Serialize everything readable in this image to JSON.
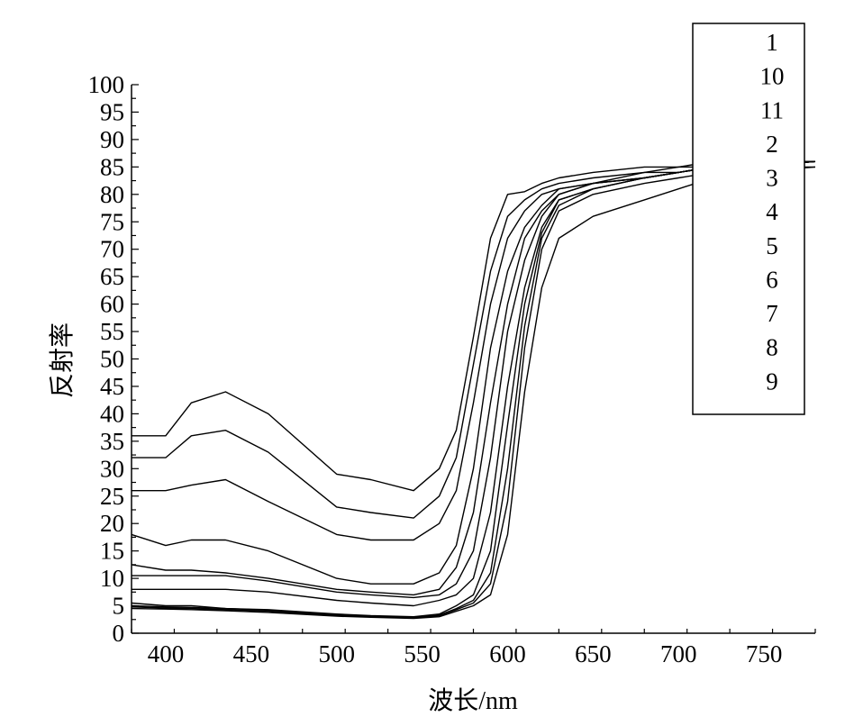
{
  "chart_data": {
    "type": "line",
    "xlabel": "波长/nm",
    "ylabel": "反射率",
    "xlim": [
      380,
      780
    ],
    "ylim": [
      0,
      100
    ],
    "x_ticks": [
      400,
      450,
      500,
      550,
      600,
      650,
      700,
      750
    ],
    "y_ticks": [
      0,
      5,
      10,
      15,
      20,
      25,
      30,
      35,
      40,
      45,
      50,
      55,
      60,
      65,
      70,
      75,
      80,
      85,
      90,
      95,
      100
    ],
    "grid": false,
    "legend": {
      "position": "top-right",
      "entries": [
        "1",
        "10",
        "11",
        "2",
        "3",
        "4",
        "5",
        "6",
        "7",
        "8",
        "9"
      ]
    },
    "line_color": "#000000",
    "series": [
      {
        "name": "1",
        "x": [
          380,
          400,
          415,
          435,
          460,
          500,
          520,
          545,
          560,
          570,
          580,
          590,
          600,
          610,
          620,
          630,
          650,
          680,
          700,
          720,
          740,
          780
        ],
        "y": [
          36,
          36,
          42,
          44,
          40,
          29,
          28,
          26,
          30,
          37,
          54,
          72,
          80,
          80.5,
          82,
          83,
          84,
          85,
          85,
          86,
          86,
          86
        ]
      },
      {
        "name": "10",
        "x": [
          380,
          400,
          415,
          435,
          460,
          500,
          520,
          545,
          560,
          570,
          580,
          590,
          600,
          610,
          620,
          630,
          650,
          680,
          700,
          720,
          740,
          780
        ],
        "y": [
          32,
          32,
          36,
          37,
          33,
          23,
          22,
          21,
          25,
          32,
          49,
          66,
          76,
          79,
          81,
          82,
          83,
          84,
          85,
          85,
          86,
          86
        ]
      },
      {
        "name": "11",
        "x": [
          380,
          400,
          415,
          435,
          460,
          500,
          520,
          545,
          560,
          570,
          580,
          590,
          600,
          610,
          620,
          630,
          650,
          680,
          700,
          720,
          740,
          780
        ],
        "y": [
          26,
          26,
          27,
          28,
          24,
          18,
          17,
          17,
          20,
          26,
          42,
          60,
          72,
          77,
          80,
          81,
          82,
          84,
          84,
          85,
          85,
          86
        ]
      },
      {
        "name": "2",
        "x": [
          380,
          400,
          415,
          435,
          460,
          500,
          520,
          545,
          560,
          570,
          580,
          590,
          600,
          610,
          620,
          630,
          650,
          680,
          700,
          720,
          740,
          780
        ],
        "y": [
          18,
          16,
          17,
          17,
          15,
          10,
          9,
          9,
          11,
          16,
          30,
          52,
          66,
          74,
          78,
          81,
          82,
          83,
          84,
          85,
          85,
          86
        ]
      },
      {
        "name": "3",
        "x": [
          380,
          400,
          415,
          435,
          460,
          500,
          520,
          545,
          560,
          570,
          580,
          590,
          600,
          610,
          620,
          630,
          650,
          680,
          700,
          720,
          740,
          780
        ],
        "y": [
          12.5,
          11.5,
          11.5,
          11,
          10,
          8,
          7.5,
          7,
          8,
          12,
          22,
          42,
          60,
          72,
          77,
          80,
          82,
          83,
          84,
          85,
          85,
          86
        ]
      },
      {
        "name": "4",
        "x": [
          380,
          400,
          415,
          435,
          460,
          500,
          520,
          545,
          560,
          570,
          580,
          590,
          600,
          610,
          620,
          630,
          650,
          680,
          700,
          720,
          740,
          780
        ],
        "y": [
          10.5,
          10.5,
          10.5,
          10.5,
          9.5,
          7.5,
          7,
          6.5,
          7,
          9,
          15,
          32,
          55,
          68,
          76,
          80,
          82,
          83,
          84,
          85,
          85,
          86
        ]
      },
      {
        "name": "5",
        "x": [
          380,
          400,
          415,
          435,
          460,
          500,
          520,
          545,
          560,
          570,
          580,
          590,
          600,
          610,
          620,
          630,
          650,
          680,
          700,
          720,
          740,
          780
        ],
        "y": [
          8,
          8,
          8,
          8,
          7.5,
          6,
          5.5,
          5,
          6,
          7,
          10,
          22,
          45,
          63,
          74,
          79,
          81,
          83,
          84,
          85,
          85,
          86
        ]
      },
      {
        "name": "6",
        "x": [
          380,
          400,
          415,
          435,
          460,
          500,
          520,
          545,
          560,
          570,
          580,
          590,
          600,
          610,
          620,
          630,
          650,
          680,
          700,
          720,
          740,
          780
        ],
        "y": [
          5.5,
          5,
          5,
          4.5,
          4.3,
          3.5,
          3.2,
          3,
          3.5,
          5,
          7,
          15,
          38,
          60,
          73,
          79,
          81,
          83,
          84,
          85,
          85,
          86
        ]
      },
      {
        "name": "7",
        "x": [
          380,
          400,
          415,
          435,
          460,
          500,
          520,
          545,
          560,
          570,
          580,
          590,
          600,
          610,
          620,
          630,
          650,
          680,
          700,
          720,
          740,
          780
        ],
        "y": [
          5,
          4.8,
          4.7,
          4.5,
          4.2,
          3.4,
          3.1,
          2.9,
          3.3,
          4.5,
          6,
          11,
          30,
          56,
          72,
          78,
          81,
          83,
          84,
          85,
          85,
          86
        ]
      },
      {
        "name": "8",
        "x": [
          380,
          400,
          415,
          435,
          460,
          500,
          520,
          545,
          560,
          570,
          580,
          590,
          600,
          610,
          620,
          630,
          650,
          680,
          700,
          720,
          740,
          780
        ],
        "y": [
          4.8,
          4.6,
          4.5,
          4.3,
          4,
          3.2,
          3,
          2.8,
          3.2,
          4.3,
          5.5,
          9,
          24,
          52,
          70,
          77,
          80,
          82,
          83,
          84,
          85,
          85
        ]
      },
      {
        "name": "9",
        "x": [
          380,
          400,
          415,
          435,
          460,
          500,
          520,
          545,
          560,
          570,
          580,
          590,
          600,
          610,
          620,
          630,
          650,
          680,
          700,
          720,
          740,
          780
        ],
        "y": [
          4.5,
          4.4,
          4.3,
          4.1,
          3.8,
          3.1,
          2.9,
          2.7,
          3,
          4,
          5,
          7,
          18,
          44,
          63,
          72,
          76,
          79,
          81,
          83,
          84,
          85
        ]
      }
    ]
  }
}
